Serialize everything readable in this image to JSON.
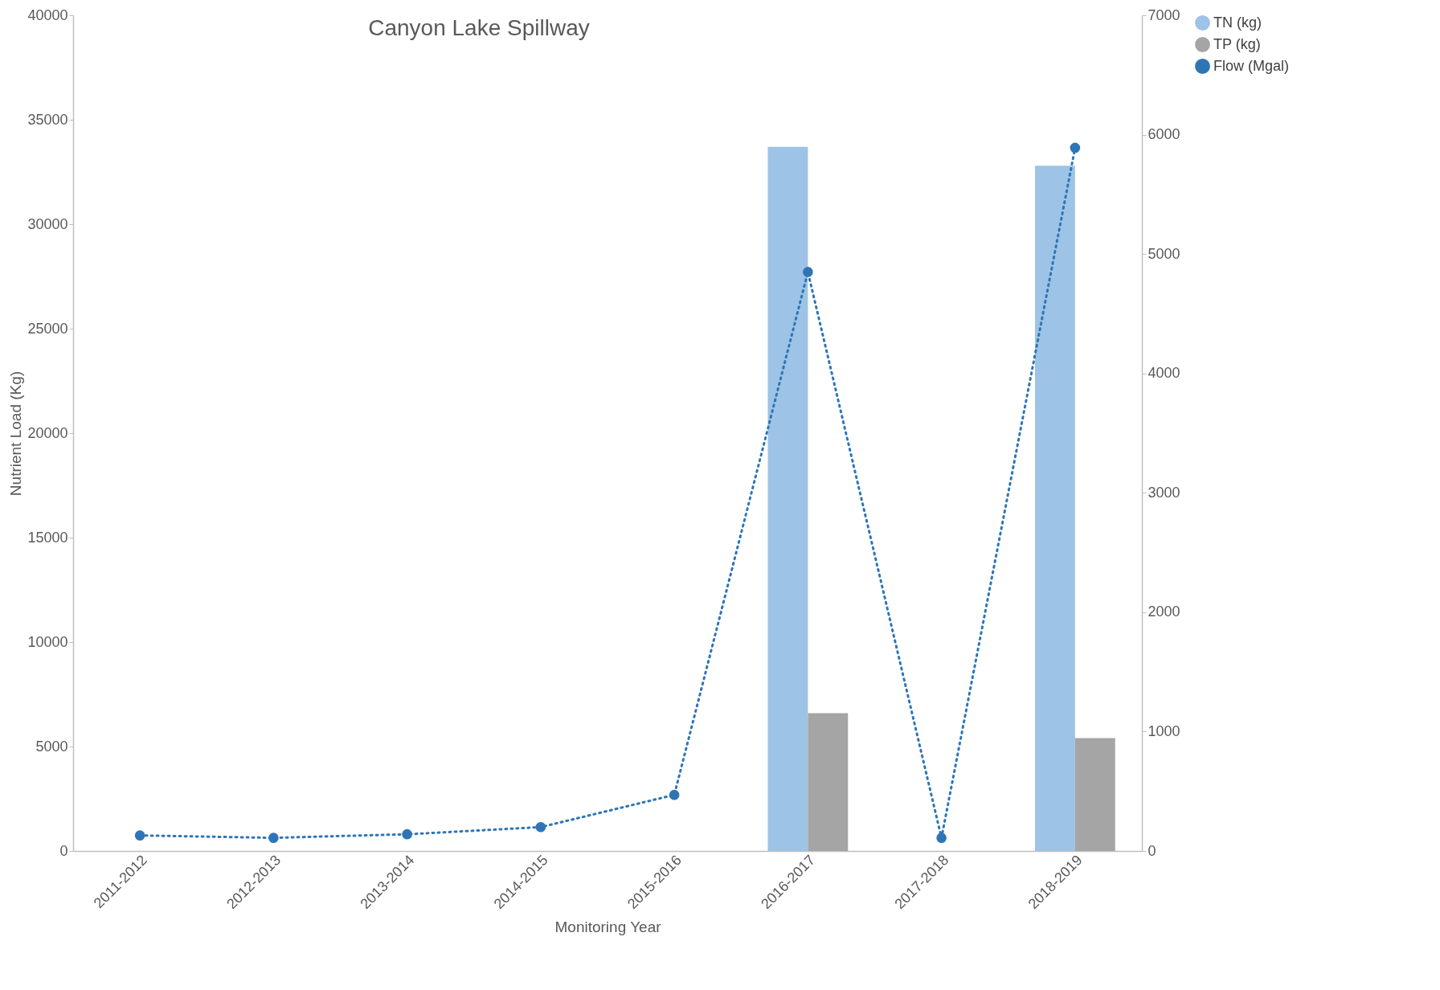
{
  "chart_data": {
    "type": "bar",
    "title": "Canyon Lake Spillway",
    "xlabel": "Monitoring Year",
    "ylabel": "Nutrient Load (Kg)",
    "categories": [
      "2011-2012",
      "2012-2013",
      "2013-2014",
      "2014-2015",
      "2015-2016",
      "2016-2017",
      "2017-2018",
      "2018-2019"
    ],
    "series": [
      {
        "name": "TN (kg)",
        "color": "#9dc3e6",
        "values": [
          null,
          null,
          null,
          null,
          null,
          33700,
          null,
          32800
        ]
      },
      {
        "name": "TP (kg)",
        "color": "#a5a5a5",
        "values": [
          null,
          null,
          null,
          null,
          null,
          6600,
          null,
          5400
        ]
      },
      {
        "name": "Flow (Mgal)",
        "type": "line",
        "axis": "y2",
        "color": "#2e75b6",
        "marker": "circle",
        "line_style": "dotted",
        "values": [
          130,
          110,
          140,
          200,
          470,
          4850,
          110,
          5890
        ]
      }
    ],
    "ylim": [
      0,
      40000
    ],
    "yticks": [
      0,
      5000,
      10000,
      15000,
      20000,
      25000,
      30000,
      35000,
      40000
    ],
    "y2lim": [
      0,
      7000
    ],
    "y2ticks": [
      0,
      1000,
      2000,
      3000,
      4000,
      5000,
      6000,
      7000
    ],
    "grid": false,
    "legend": "right"
  }
}
